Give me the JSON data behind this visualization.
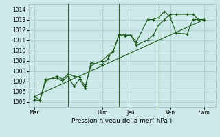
{
  "xlabel": "Pression niveau de la mer( hPa )",
  "bg_color": "#cce8e8",
  "grid_color": "#aacccc",
  "line_color": "#1a5c1a",
  "vline_color": "#336633",
  "ylim": [
    1004.5,
    1014.5
  ],
  "yticks": [
    1005,
    1006,
    1007,
    1008,
    1009,
    1010,
    1011,
    1012,
    1013,
    1014
  ],
  "xlim": [
    0,
    33
  ],
  "x_day_labels": [
    "Mar",
    "Dim",
    "Jeu",
    "Ven",
    "Sam"
  ],
  "x_day_positions": [
    1,
    13,
    18,
    25,
    31
  ],
  "vline_positions": [
    7,
    16,
    23
  ],
  "series1_x": [
    1,
    2,
    3,
    5,
    6,
    7,
    8,
    9,
    10,
    11,
    13,
    14,
    15,
    16,
    17,
    18,
    19,
    21,
    22,
    23,
    24,
    25,
    26,
    28,
    29,
    30,
    31
  ],
  "series1_y": [
    1005.2,
    1005.1,
    1007.0,
    1007.5,
    1007.2,
    1007.7,
    1007.5,
    1007.4,
    1006.5,
    1008.5,
    1009.0,
    1009.5,
    1010.0,
    1011.5,
    1011.4,
    1011.5,
    1010.5,
    1011.0,
    1011.5,
    1012.5,
    1013.0,
    1013.5,
    1013.5,
    1013.5,
    1013.5,
    1013.0,
    1013.0
  ],
  "series2_x": [
    1,
    2,
    3,
    5,
    6,
    7,
    8,
    9,
    10,
    11,
    13,
    14,
    15,
    16,
    17,
    18,
    19,
    21,
    22,
    23,
    24,
    25,
    26,
    28,
    29,
    30,
    31
  ],
  "series2_y": [
    1005.5,
    1005.2,
    1007.2,
    1007.3,
    1007.0,
    1007.5,
    1006.5,
    1007.2,
    1006.3,
    1008.8,
    1008.6,
    1009.2,
    1010.0,
    1011.6,
    1011.5,
    1011.5,
    1010.8,
    1013.0,
    1013.0,
    1013.2,
    1013.8,
    1013.2,
    1011.7,
    1011.6,
    1013.0,
    1013.0,
    1013.0
  ],
  "trend_x": [
    1,
    31
  ],
  "trend_y": [
    1005.5,
    1013.0
  ],
  "marker_size": 3.0,
  "linewidth": 0.8,
  "tick_fontsize": 5.5,
  "xlabel_fontsize": 6.5
}
